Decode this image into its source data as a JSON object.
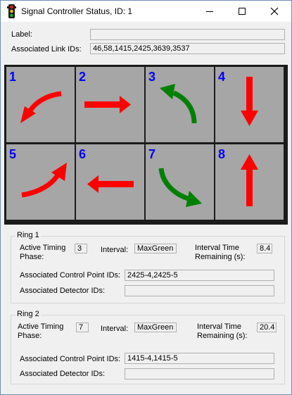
{
  "window": {
    "title": "Signal Controller Status, ID: 1",
    "minimize_icon": "minimize-icon",
    "maximize_icon": "maximize-icon",
    "close_icon": "close-icon"
  },
  "header": {
    "label_caption": "Label:",
    "label_value": "",
    "links_caption": "Associated Link IDs:",
    "links_value": "46,58,1415,2425,3639,3537"
  },
  "movements": [
    {
      "number": "1",
      "direction": "left turn",
      "color": "#ff0000"
    },
    {
      "number": "2",
      "direction": "east",
      "color": "#ff0000"
    },
    {
      "number": "3",
      "direction": "left turn",
      "color": "#008000"
    },
    {
      "number": "4",
      "direction": "south",
      "color": "#ff0000"
    },
    {
      "number": "5",
      "direction": "left turn",
      "color": "#ff0000"
    },
    {
      "number": "6",
      "direction": "west",
      "color": "#ff0000"
    },
    {
      "number": "7",
      "direction": "left turn",
      "color": "#008000"
    },
    {
      "number": "8",
      "direction": "north",
      "color": "#ff0000"
    }
  ],
  "rings": [
    {
      "title": "Ring 1",
      "phase_label": "Active Timing Phase:",
      "phase_value": "3",
      "interval_label": "Interval:",
      "interval_value": "MaxGreen",
      "remaining_label": "Interval Time Remaining (s):",
      "remaining_value": "8.4",
      "cp_label": "Associated Control Point IDs:",
      "cp_value": "2425-4,2425-5",
      "det_label": "Associated Detector IDs:",
      "det_value": ""
    },
    {
      "title": "Ring 2",
      "phase_label": "Active Timing Phase:",
      "phase_value": "7",
      "interval_label": "Interval:",
      "interval_value": "MaxGreen",
      "remaining_label": "Interval Time Remaining (s):",
      "remaining_value": "20.4",
      "cp_label": "Associated Control Point IDs:",
      "cp_value": "1415-4,1415-5",
      "det_label": "Associated Detector IDs:",
      "det_value": ""
    }
  ]
}
